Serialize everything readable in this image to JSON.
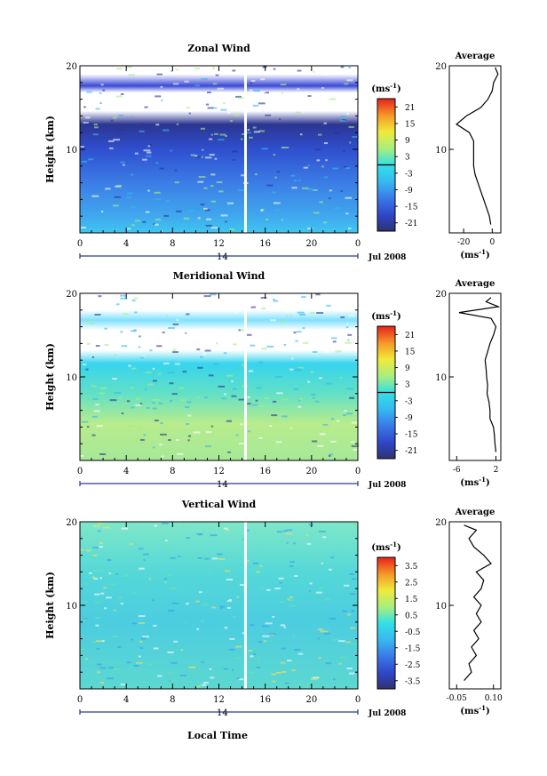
{
  "common": {
    "ylabel": "Height (km)",
    "y_ticks": [
      10,
      20
    ],
    "x_ticks": [
      "0",
      "4",
      "8",
      "12",
      "16",
      "20",
      "0"
    ],
    "day_label": "14",
    "date_label": "Jul 2008",
    "xlabel": "Local Time",
    "avg_title": "Average",
    "avg_ylabel": "Height",
    "avg_unit_label": "(ms",
    "avg_unit_exp": "-1",
    "avg_unit_close": ")",
    "cb_unit_label": "(ms",
    "cb_unit_exp": "-1",
    "cb_unit_close": ")"
  },
  "chart_data": [
    {
      "type": "heatmap",
      "title": "Zonal Wind",
      "x_range_hours": [
        0,
        24
      ],
      "ylim_km": [
        0,
        20
      ],
      "colorbar_ticks": [
        "21",
        "15",
        "9",
        "3",
        "-3",
        "-9",
        "-15",
        "-21"
      ],
      "colorbar_range": [
        -24,
        24
      ],
      "zero_line": true,
      "gap_hour": 14.3,
      "profile_key": "zonal"
    },
    {
      "type": "heatmap",
      "title": "Meridional Wind",
      "x_range_hours": [
        0,
        24
      ],
      "ylim_km": [
        0,
        20
      ],
      "colorbar_ticks": [
        "21",
        "15",
        "9",
        "3",
        "-3",
        "-9",
        "-15",
        "-21"
      ],
      "colorbar_range": [
        -24,
        24
      ],
      "zero_line": true,
      "gap_hour": 14.3,
      "profile_key": "meridional"
    },
    {
      "type": "heatmap",
      "title": "Vertical Wind",
      "x_range_hours": [
        0,
        24
      ],
      "ylim_km": [
        0,
        20
      ],
      "colorbar_ticks": [
        "3.5",
        "2.5",
        "1.5",
        "0.5",
        "-0.5",
        "-1.5",
        "-2.5",
        "-3.5"
      ],
      "colorbar_range": [
        -4,
        4
      ],
      "zero_line": false,
      "gap_hour": 14.3,
      "profile_key": "vertical"
    }
  ],
  "averages": {
    "zonal": {
      "x_ticks": [
        "-20",
        "0"
      ],
      "x_tick_values": [
        -20,
        0
      ],
      "xlim": [
        -30,
        6
      ],
      "height_km": [
        1,
        2,
        3,
        4,
        5,
        6,
        7,
        8,
        9,
        10,
        11,
        12,
        13,
        14,
        15,
        16,
        17,
        18,
        19,
        19.8
      ],
      "values": [
        -1,
        -2,
        -4,
        -6,
        -8,
        -10,
        -12,
        -13,
        -13,
        -13,
        -13,
        -16,
        -25,
        -18,
        -8,
        -3,
        0,
        1,
        4,
        2
      ]
    },
    "meridional": {
      "x_ticks": [
        "-6",
        "2"
      ],
      "x_tick_values": [
        -6,
        2
      ],
      "xlim": [
        -7.5,
        3
      ],
      "height_km": [
        1,
        2,
        3,
        4,
        5,
        6,
        7,
        8,
        9,
        10,
        11,
        12,
        13,
        14,
        15,
        16,
        17,
        17.7,
        18.4,
        19,
        19.5
      ],
      "values": [
        2,
        1.8,
        1.7,
        1.5,
        0.8,
        0.8,
        0.6,
        0.2,
        0.3,
        0.1,
        0.0,
        -0.2,
        0.3,
        0.8,
        1.5,
        2,
        1,
        -5.5,
        2.5,
        0,
        1
      ]
    },
    "vertical": {
      "x_ticks": [
        "-0.05",
        "0.10"
      ],
      "x_tick_values": [
        -0.05,
        0.1
      ],
      "xlim": [
        -0.08,
        0.13
      ],
      "height_km": [
        1,
        2,
        3,
        4,
        5,
        6,
        7,
        8,
        9,
        10,
        11,
        12,
        13,
        14,
        15,
        16,
        17,
        18,
        19,
        19.6
      ],
      "values": [
        -0.02,
        0.01,
        0.0,
        0.03,
        0.01,
        0.04,
        0.02,
        0.05,
        0.03,
        0.05,
        0.02,
        0.05,
        0.06,
        0.03,
        0.09,
        0.06,
        0.02,
        0.0,
        0.03,
        -0.02
      ]
    }
  }
}
